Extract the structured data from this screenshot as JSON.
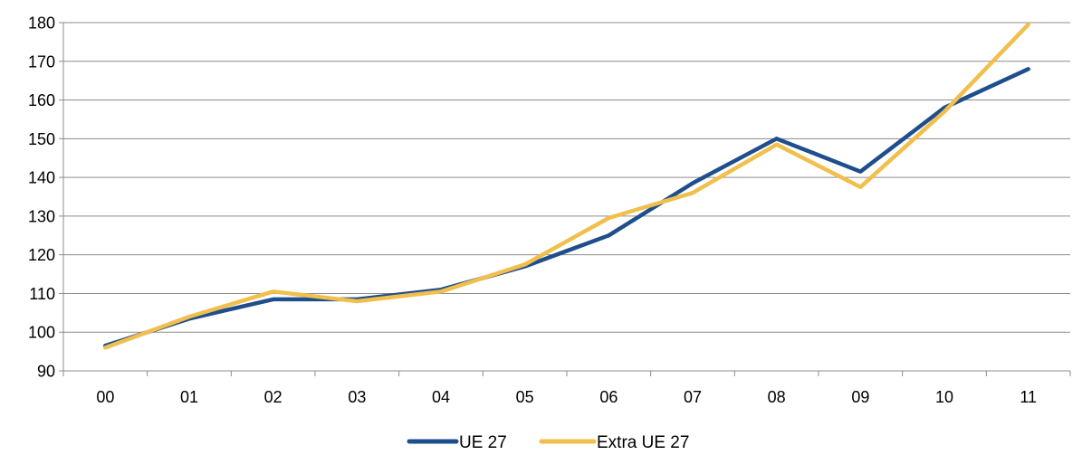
{
  "chart_data": {
    "type": "line",
    "categories": [
      "00",
      "01",
      "02",
      "03",
      "04",
      "05",
      "06",
      "07",
      "08",
      "09",
      "10",
      "11"
    ],
    "series": [
      {
        "name": "UE 27",
        "color": "#1f4e8c",
        "values": [
          96.5,
          103.5,
          108.5,
          108.5,
          111,
          117,
          125,
          138.5,
          150,
          141.5,
          158,
          168
        ]
      },
      {
        "name": "Extra UE 27",
        "color": "#f0bf4c",
        "values": [
          96,
          104,
          110.5,
          108,
          110.5,
          117.5,
          129.5,
          136,
          148.5,
          137.5,
          157,
          179.5
        ]
      }
    ],
    "ylim": [
      90,
      180
    ],
    "yticks": [
      "90",
      "100",
      "110",
      "120",
      "130",
      "140",
      "150",
      "160",
      "170",
      "180"
    ],
    "title": "",
    "xlabel": "",
    "ylabel": "",
    "grid": true,
    "legend_position": "bottom-center"
  }
}
